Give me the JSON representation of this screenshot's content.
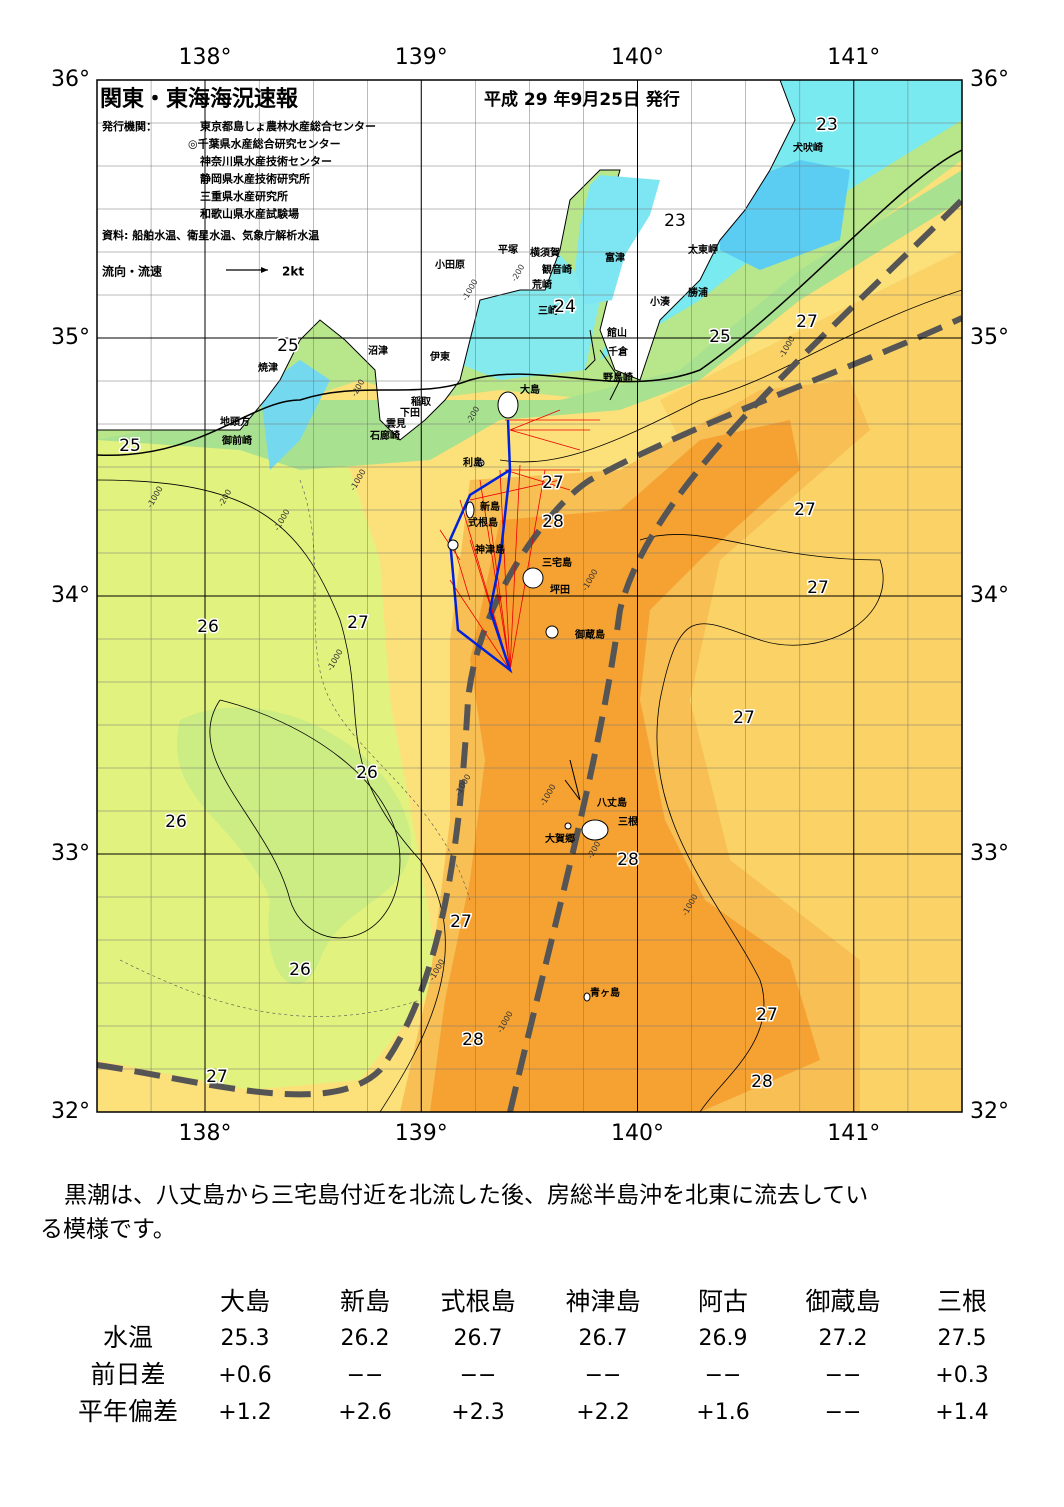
{
  "map": {
    "lon_ticks": [
      "138°",
      "139°",
      "140°",
      "141°"
    ],
    "lat_ticks": [
      "36°",
      "35°",
      "34°",
      "33°",
      "32°"
    ],
    "places": [
      "犬吠崎",
      "太東岬",
      "勝浦",
      "小湊",
      "富津",
      "横須賀",
      "観音崎",
      "平塚",
      "小田原",
      "荒崎",
      "三崎",
      "館山",
      "千倉",
      "野島崎",
      "沼津",
      "伊東",
      "焼津",
      "稲取",
      "下田",
      "雲見",
      "石廊崎",
      "地頭方",
      "御前崎",
      "大島",
      "利島",
      "新島",
      "式根島",
      "神津島",
      "三宅島",
      "坪田",
      "御蔵島",
      "八丈島",
      "三根",
      "大賀郷",
      "青ヶ島"
    ],
    "isotherm_labels": [
      "23",
      "23",
      "24",
      "25",
      "25",
      "27",
      "25",
      "27",
      "28",
      "27",
      "27",
      "26",
      "27",
      "27",
      "26",
      "26",
      "28",
      "27",
      "26",
      "27",
      "28",
      "27",
      "28"
    ],
    "depth_labels": [
      "-200",
      "-1000",
      "-200",
      "-200",
      "-1000",
      "-1000",
      "-1000",
      "-200",
      "-1000",
      "-1000",
      "-1000",
      "-1000",
      "-200",
      "-1000",
      "-1000",
      "-1000",
      "-1000"
    ]
  },
  "header": {
    "title": "関東・東海海況速報",
    "date": "平成 29 年9月25日 発行",
    "publisher_label": "発行機関：",
    "publishers": [
      "東京都島しょ農林水産総合センター",
      "◎千葉県水産総合研究センター",
      "神奈川県水産技術センター",
      "静岡県水産技術研究所",
      "三重県水産研究所",
      "和歌山県水産試験場"
    ],
    "source": "資料: 船舶水温、衛星水温、気象庁解析水温",
    "flow_legend": "流向・流速",
    "flow_scale": "2kt"
  },
  "summary": [
    "黒潮は、八丈島から三宅島付近を北流した後、房総半島沖を北東に流去してい",
    "る模様です。"
  ],
  "table": {
    "columns": [
      "大島",
      "新島",
      "式根島",
      "神津島",
      "阿古",
      "御蔵島",
      "三根"
    ],
    "rows": [
      {
        "label": "水温",
        "values": [
          "25.3",
          "26.2",
          "26.7",
          "26.7",
          "26.9",
          "27.2",
          "27.5"
        ]
      },
      {
        "label": "前日差",
        "values": [
          "+0.6",
          "−−",
          "−−",
          "−−",
          "−−",
          "−−",
          "+0.3"
        ]
      },
      {
        "label": "平年偏差",
        "values": [
          "+1.2",
          "+2.6",
          "+2.3",
          "+2.2",
          "+1.6",
          "−−",
          "+1.4"
        ]
      }
    ]
  }
}
